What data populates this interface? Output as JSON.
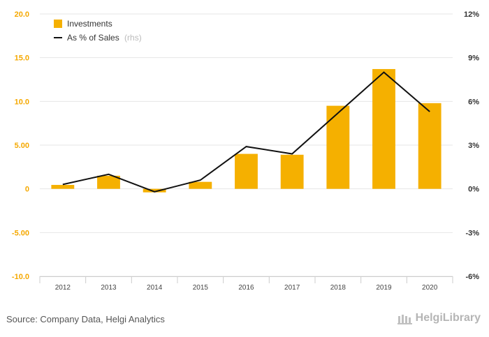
{
  "chart_data": {
    "type": "bar",
    "categories": [
      "2012",
      "2013",
      "2014",
      "2015",
      "2016",
      "2017",
      "2018",
      "2019",
      "2020"
    ],
    "series": [
      {
        "name": "Investments",
        "type": "bar",
        "axis": "left",
        "values": [
          0.45,
          1.5,
          -0.4,
          0.8,
          4.0,
          3.9,
          9.5,
          13.7,
          9.8
        ]
      },
      {
        "name": "As % of Sales",
        "name_suffix": "(rhs)",
        "type": "line",
        "axis": "right",
        "values": [
          0.3,
          1.0,
          -0.2,
          0.6,
          2.9,
          2.4,
          5.2,
          8.0,
          5.3
        ]
      }
    ],
    "y_left": {
      "ylim": [
        -10,
        20
      ],
      "ticks": [
        -10,
        -5,
        0,
        5,
        10,
        15,
        20
      ],
      "tick_labels": [
        "-10.0",
        "-5.00",
        "0",
        "5.00",
        "10.0",
        "15.0",
        "20.0"
      ]
    },
    "y_right": {
      "ylim": [
        -6,
        12
      ],
      "ticks": [
        -6,
        -3,
        0,
        3,
        6,
        9,
        12
      ],
      "tick_labels": [
        "-6%",
        "-3%",
        "0%",
        "3%",
        "6%",
        "9%",
        "12%"
      ]
    },
    "grid": true,
    "legend_placement": "top-left",
    "colors": {
      "bar": "#f5b000",
      "line": "#111111",
      "left_axis": "#f5a800",
      "right_axis": "#333333"
    }
  },
  "footer": {
    "source": "Source: Company Data, Helgi Analytics",
    "logo_text": "HelgiLibrary"
  }
}
